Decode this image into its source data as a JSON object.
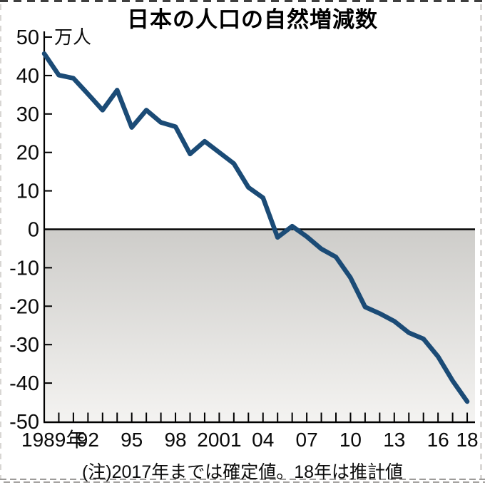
{
  "figure": {
    "title": "日本の人口の自然増減数",
    "note": "(注)2017年までは確定値。18年は推計値",
    "unit_label": "万人"
  },
  "chart_data": {
    "type": "line",
    "title": "日本の人口の自然増減数",
    "ylabel": "万人",
    "xlabel": "",
    "note": "(注)2017年までは確定値。18年は推計値",
    "x_range": [
      1989,
      2018
    ],
    "ylim": [
      -50,
      50
    ],
    "grid": false,
    "legend": "none",
    "x": [
      1989,
      1990,
      1991,
      1992,
      1993,
      1994,
      1995,
      1996,
      1997,
      1998,
      1999,
      2000,
      2001,
      2002,
      2003,
      2004,
      2005,
      2006,
      2007,
      2008,
      2009,
      2010,
      2011,
      2012,
      2013,
      2014,
      2015,
      2016,
      2017,
      2018
    ],
    "values": [
      45.7,
      40.1,
      39.3,
      35.2,
      31.0,
      36.2,
      26.5,
      31.0,
      27.8,
      26.7,
      19.6,
      22.9,
      20.0,
      17.1,
      10.9,
      8.2,
      -2.1,
      0.8,
      -1.9,
      -5.1,
      -7.2,
      -12.6,
      -20.2,
      -21.9,
      -23.9,
      -26.9,
      -28.5,
      -33.1,
      -39.4,
      -44.8
    ],
    "y_ticks": [
      50,
      40,
      30,
      20,
      10,
      0,
      -10,
      -20,
      -30,
      -40,
      -50
    ],
    "x_tick_years": [
      1989,
      1992,
      1995,
      1998,
      2001,
      2004,
      2007,
      2010,
      2013,
      2016,
      2018
    ],
    "x_tick_labels": [
      "1989年",
      "92",
      "95",
      "98",
      "2001",
      "04",
      "07",
      "10",
      "13",
      "16",
      "18"
    ],
    "line_color": "#1b4b76",
    "axis_color": "#000000",
    "label_color": "#0a0a0a",
    "negative_region_gradient": [
      "#cecdca",
      "#f4f3f1"
    ]
  }
}
